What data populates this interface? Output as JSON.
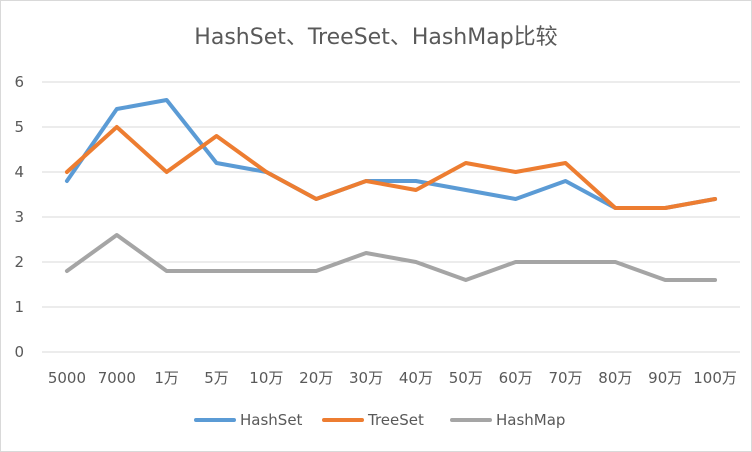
{
  "chart_data": {
    "type": "line",
    "title": "HashSet、TreeSet、HashMap比较",
    "xlabel": "",
    "ylabel": "",
    "categories": [
      "5000",
      "7000",
      "1万",
      "5万",
      "10万",
      "20万",
      "30万",
      "40万",
      "50万",
      "60万",
      "70万",
      "80万",
      "90万",
      "100万"
    ],
    "ylim": [
      0,
      6
    ],
    "yticks": [
      "0",
      "1",
      "2",
      "3",
      "4",
      "5",
      "6"
    ],
    "grid": true,
    "legend_position": "bottom",
    "series": [
      {
        "name": "HashSet",
        "color": "#5b9bd5",
        "values": [
          3.8,
          5.4,
          5.6,
          4.2,
          4.0,
          3.4,
          3.8,
          3.8,
          3.6,
          3.4,
          3.8,
          3.2,
          3.2,
          3.4
        ]
      },
      {
        "name": "TreeSet",
        "color": "#ed7d31",
        "values": [
          4.0,
          5.0,
          4.0,
          4.8,
          4.0,
          3.4,
          3.8,
          3.6,
          4.2,
          4.0,
          4.2,
          3.2,
          3.2,
          3.4
        ]
      },
      {
        "name": "HashMap",
        "color": "#a5a5a5",
        "values": [
          1.8,
          2.6,
          1.8,
          1.8,
          1.8,
          1.8,
          2.2,
          2.0,
          1.6,
          2.0,
          2.0,
          2.0,
          1.6,
          1.6
        ]
      }
    ]
  }
}
